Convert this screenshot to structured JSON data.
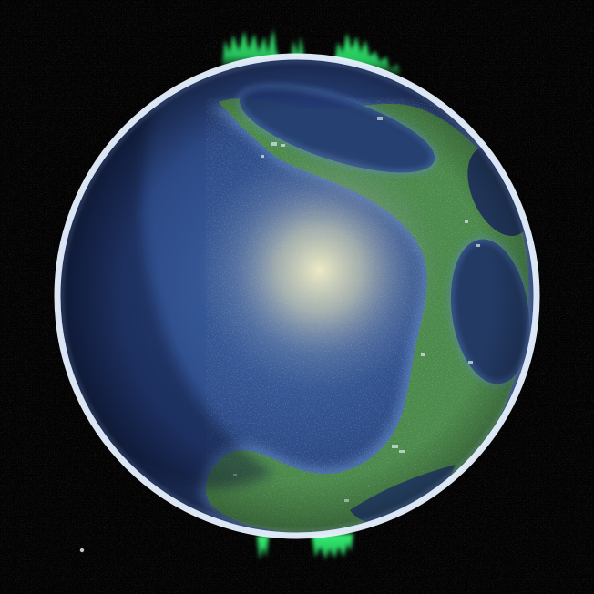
{
  "scene": {
    "subject": "planet",
    "background_color": "#040303",
    "star_noise_color": "#3a2a2a",
    "colors": {
      "ocean_deep": "#1b2a55",
      "ocean_mid": "#2d4a86",
      "ocean_shallow": "#3f67a8",
      "land": "#4c8a4c",
      "land_dark": "#2f5a35",
      "land_speckle": "#9fb7a0",
      "rim": "#e8f2ff",
      "aurora": "#37ff7a",
      "specular": "#f3f0c8"
    },
    "icons": [
      "planet-globe-icon",
      "aurora-north-icon",
      "aurora-south-icon"
    ]
  }
}
